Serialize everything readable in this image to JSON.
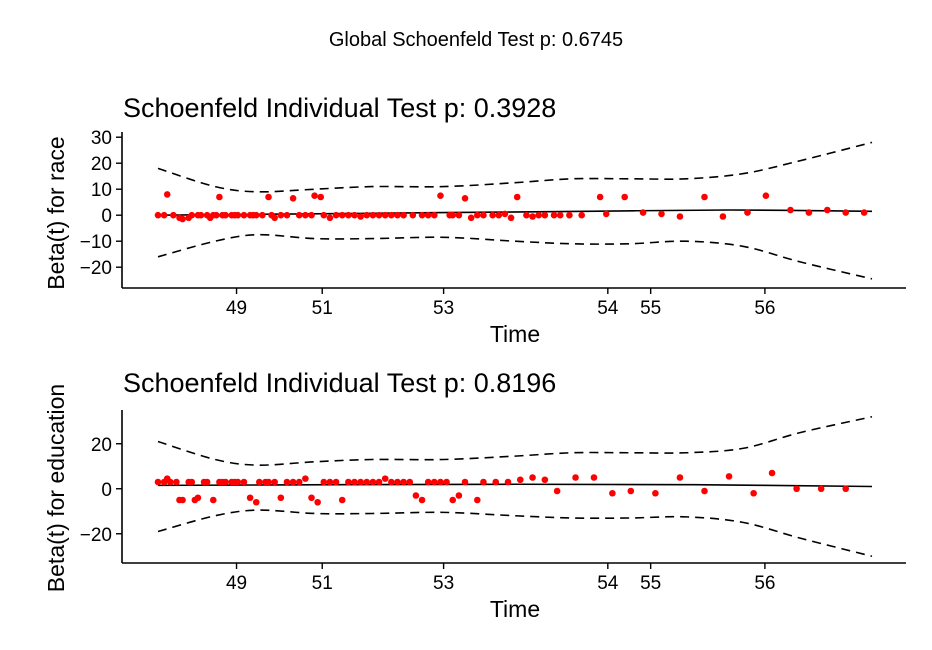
{
  "global_title": "Global Schoenfeld Test p: 0.6745",
  "colors": {
    "points": "#ff0000",
    "lines": "#000000"
  },
  "chart_data": [
    {
      "type": "scatter",
      "title": "Schoenfeld Individual Test p: 0.3928",
      "xlabel": "Time",
      "ylabel": "Beta(t) for race",
      "yticks": [
        30,
        20,
        10,
        0,
        -10,
        -20
      ],
      "ylim": [
        -28,
        32
      ],
      "xticks": [
        {
          "label": "49",
          "pos": 0.11
        },
        {
          "label": "51",
          "pos": 0.23
        },
        {
          "label": "53",
          "pos": 0.4
        },
        {
          "label": "54",
          "pos": 0.63
        },
        {
          "label": "55",
          "pos": 0.69
        },
        {
          "label": "56",
          "pos": 0.85
        }
      ],
      "fit_line": {
        "x": [
          0,
          0.2,
          0.4,
          0.6,
          0.8,
          1.0
        ],
        "y": [
          0,
          0.5,
          1,
          1.5,
          2,
          1.5
        ]
      },
      "upper_band": {
        "x": [
          0,
          0.08,
          0.14,
          0.22,
          0.3,
          0.4,
          0.5,
          0.58,
          0.66,
          0.74,
          0.82,
          0.9,
          1.0
        ],
        "y": [
          18,
          11,
          9,
          10,
          11,
          11,
          12.5,
          14,
          14,
          14,
          16,
          21,
          28
        ]
      },
      "lower_band": {
        "x": [
          0,
          0.08,
          0.14,
          0.22,
          0.3,
          0.4,
          0.5,
          0.58,
          0.66,
          0.74,
          0.82,
          0.9,
          1.0
        ],
        "y": [
          -16,
          -10,
          -7.5,
          -9,
          -9,
          -8.5,
          -10,
          -11,
          -11,
          -10,
          -12,
          -18,
          -24.5
        ]
      },
      "points": [
        [
          0.0,
          0
        ],
        [
          0.01,
          0
        ],
        [
          0.015,
          8
        ],
        [
          0.025,
          0
        ],
        [
          0.035,
          -1
        ],
        [
          0.04,
          -1.5
        ],
        [
          0.05,
          -1
        ],
        [
          0.055,
          0
        ],
        [
          0.065,
          0
        ],
        [
          0.07,
          0
        ],
        [
          0.08,
          0
        ],
        [
          0.085,
          -1
        ],
        [
          0.09,
          0
        ],
        [
          0.095,
          0
        ],
        [
          0.1,
          7
        ],
        [
          0.105,
          0
        ],
        [
          0.11,
          0
        ],
        [
          0.12,
          0
        ],
        [
          0.125,
          0
        ],
        [
          0.13,
          0
        ],
        [
          0.14,
          0
        ],
        [
          0.15,
          0
        ],
        [
          0.155,
          0
        ],
        [
          0.16,
          0
        ],
        [
          0.17,
          0
        ],
        [
          0.18,
          7
        ],
        [
          0.185,
          0
        ],
        [
          0.19,
          -1
        ],
        [
          0.2,
          0
        ],
        [
          0.21,
          0
        ],
        [
          0.22,
          6.5
        ],
        [
          0.23,
          0
        ],
        [
          0.24,
          0
        ],
        [
          0.25,
          0
        ],
        [
          0.255,
          7.5
        ],
        [
          0.265,
          7
        ],
        [
          0.27,
          0
        ],
        [
          0.28,
          -1
        ],
        [
          0.29,
          0
        ],
        [
          0.3,
          0
        ],
        [
          0.31,
          0
        ],
        [
          0.32,
          0
        ],
        [
          0.33,
          -0.5
        ],
        [
          0.34,
          0
        ],
        [
          0.35,
          0
        ],
        [
          0.36,
          0
        ],
        [
          0.37,
          0
        ],
        [
          0.38,
          0
        ],
        [
          0.39,
          0
        ],
        [
          0.4,
          0
        ],
        [
          0.415,
          0
        ],
        [
          0.43,
          0
        ],
        [
          0.44,
          0
        ],
        [
          0.45,
          0
        ],
        [
          0.46,
          7.5
        ],
        [
          0.475,
          0
        ],
        [
          0.48,
          0
        ],
        [
          0.49,
          0
        ],
        [
          0.5,
          6.5
        ],
        [
          0.51,
          -1
        ],
        [
          0.52,
          0
        ],
        [
          0.53,
          0
        ],
        [
          0.545,
          0
        ],
        [
          0.555,
          0
        ],
        [
          0.565,
          0.5
        ],
        [
          0.575,
          -1
        ],
        [
          0.585,
          7
        ],
        [
          0.6,
          0
        ],
        [
          0.61,
          -0.5
        ],
        [
          0.62,
          0
        ],
        [
          0.63,
          0
        ],
        [
          0.645,
          0
        ],
        [
          0.655,
          0
        ],
        [
          0.67,
          0
        ],
        [
          0.69,
          0
        ],
        [
          0.72,
          7
        ],
        [
          0.73,
          0.5
        ],
        [
          0.76,
          7
        ],
        [
          0.79,
          1
        ],
        [
          0.82,
          0.5
        ],
        [
          0.85,
          -0.5
        ],
        [
          0.89,
          7
        ],
        [
          0.92,
          -0.5
        ],
        [
          0.96,
          1
        ],
        [
          0.99,
          7.5
        ],
        [
          1.03,
          2
        ],
        [
          1.06,
          1
        ],
        [
          1.09,
          2
        ],
        [
          1.12,
          1
        ],
        [
          1.15,
          1
        ]
      ]
    },
    {
      "type": "scatter",
      "title": "Schoenfeld Individual Test p: 0.8196",
      "xlabel": "Time",
      "ylabel": "Beta(t) for education",
      "yticks": [
        20,
        0,
        -20
      ],
      "ylim": [
        -33,
        35
      ],
      "xticks": [
        {
          "label": "49",
          "pos": 0.11
        },
        {
          "label": "51",
          "pos": 0.23
        },
        {
          "label": "53",
          "pos": 0.4
        },
        {
          "label": "54",
          "pos": 0.63
        },
        {
          "label": "55",
          "pos": 0.69
        },
        {
          "label": "56",
          "pos": 0.85
        }
      ],
      "fit_line": {
        "x": [
          0,
          0.25,
          0.5,
          0.75,
          1.0
        ],
        "y": [
          1.5,
          1.8,
          2,
          1.8,
          1
        ]
      },
      "upper_band": {
        "x": [
          0,
          0.08,
          0.14,
          0.22,
          0.3,
          0.4,
          0.5,
          0.58,
          0.66,
          0.74,
          0.82,
          0.9,
          1.0
        ],
        "y": [
          21,
          13,
          10.5,
          12,
          13,
          13,
          14.5,
          16,
          16,
          16,
          18,
          25,
          32
        ]
      },
      "lower_band": {
        "x": [
          0,
          0.08,
          0.14,
          0.22,
          0.3,
          0.4,
          0.5,
          0.58,
          0.66,
          0.74,
          0.82,
          0.9,
          1.0
        ],
        "y": [
          -19,
          -12,
          -9.5,
          -11,
          -11,
          -10.5,
          -12,
          -13,
          -13,
          -12.5,
          -15,
          -22,
          -30
        ]
      },
      "points": [
        [
          0.0,
          3
        ],
        [
          0.01,
          3
        ],
        [
          0.015,
          4.5
        ],
        [
          0.02,
          3
        ],
        [
          0.03,
          3
        ],
        [
          0.035,
          -5
        ],
        [
          0.04,
          -5
        ],
        [
          0.05,
          3
        ],
        [
          0.055,
          3
        ],
        [
          0.06,
          -5
        ],
        [
          0.065,
          -4
        ],
        [
          0.075,
          3
        ],
        [
          0.08,
          3
        ],
        [
          0.09,
          -5
        ],
        [
          0.1,
          3
        ],
        [
          0.105,
          3
        ],
        [
          0.11,
          3
        ],
        [
          0.12,
          3
        ],
        [
          0.125,
          3
        ],
        [
          0.13,
          3
        ],
        [
          0.14,
          3
        ],
        [
          0.15,
          -4
        ],
        [
          0.16,
          -6
        ],
        [
          0.165,
          3
        ],
        [
          0.175,
          3
        ],
        [
          0.18,
          3
        ],
        [
          0.19,
          3
        ],
        [
          0.2,
          -4
        ],
        [
          0.21,
          3
        ],
        [
          0.22,
          3
        ],
        [
          0.23,
          3
        ],
        [
          0.24,
          4.5
        ],
        [
          0.25,
          -4
        ],
        [
          0.26,
          -6
        ],
        [
          0.27,
          3
        ],
        [
          0.28,
          3
        ],
        [
          0.29,
          3
        ],
        [
          0.3,
          -5
        ],
        [
          0.31,
          3
        ],
        [
          0.32,
          3
        ],
        [
          0.33,
          3
        ],
        [
          0.34,
          3
        ],
        [
          0.35,
          3
        ],
        [
          0.36,
          3
        ],
        [
          0.37,
          4.5
        ],
        [
          0.38,
          3
        ],
        [
          0.39,
          3
        ],
        [
          0.4,
          3
        ],
        [
          0.41,
          3
        ],
        [
          0.42,
          -3
        ],
        [
          0.43,
          -5
        ],
        [
          0.44,
          3
        ],
        [
          0.45,
          3
        ],
        [
          0.46,
          3
        ],
        [
          0.47,
          3
        ],
        [
          0.48,
          -5
        ],
        [
          0.49,
          -3
        ],
        [
          0.5,
          3
        ],
        [
          0.52,
          -5
        ],
        [
          0.53,
          3
        ],
        [
          0.55,
          3
        ],
        [
          0.57,
          3
        ],
        [
          0.59,
          4
        ],
        [
          0.61,
          5
        ],
        [
          0.63,
          4
        ],
        [
          0.65,
          -1
        ],
        [
          0.68,
          5
        ],
        [
          0.71,
          5
        ],
        [
          0.74,
          -2
        ],
        [
          0.77,
          -1
        ],
        [
          0.81,
          -2
        ],
        [
          0.85,
          5
        ],
        [
          0.89,
          -1
        ],
        [
          0.93,
          5.5
        ],
        [
          0.97,
          -2
        ],
        [
          1.0,
          7
        ],
        [
          1.04,
          0
        ],
        [
          1.08,
          0
        ],
        [
          1.12,
          0
        ]
      ]
    }
  ]
}
